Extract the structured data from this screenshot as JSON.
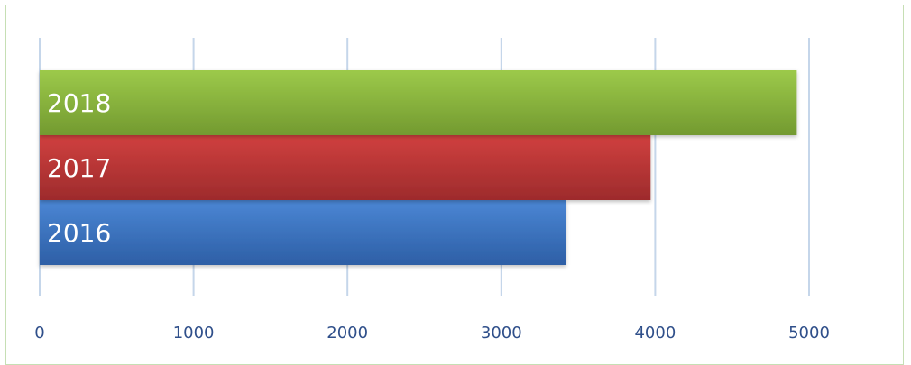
{
  "chart_data": {
    "type": "bar",
    "orientation": "horizontal",
    "title": "",
    "xlabel": "",
    "ylabel": "",
    "categories": [
      "2016",
      "2017",
      "2018"
    ],
    "values": [
      3420,
      3970,
      4920
    ],
    "colors": [
      "#3a73c2",
      "#c0393a",
      "#8db83f"
    ],
    "xlim": [
      0,
      5000
    ],
    "x_ticks": [
      "0",
      "1000",
      "2000",
      "3000",
      "4000",
      "5000"
    ],
    "grid": "vertical",
    "legend": "none",
    "category_labels_inside_bars": true
  }
}
